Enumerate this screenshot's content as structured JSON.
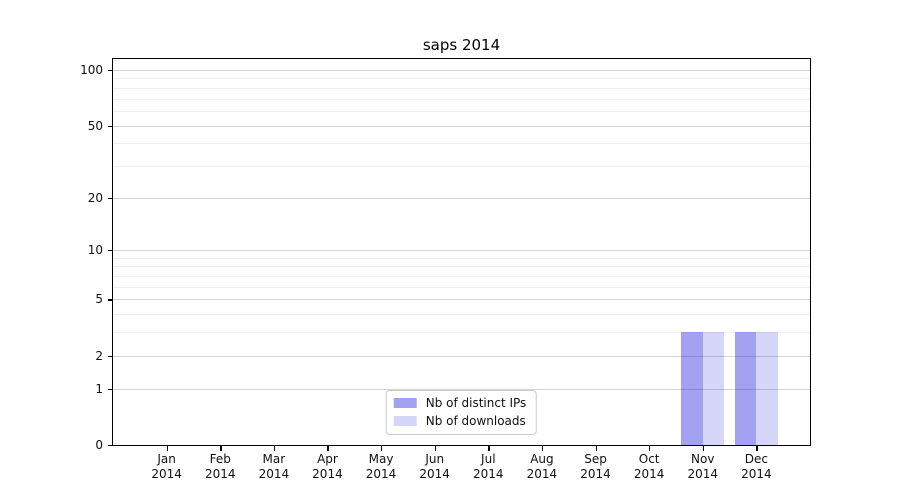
{
  "title": "saps 2014",
  "chart_data": {
    "type": "bar",
    "title": "saps 2014",
    "categories": [
      "Jan",
      "Feb",
      "Mar",
      "Apr",
      "May",
      "Jun",
      "Jul",
      "Aug",
      "Sep",
      "Oct",
      "Nov",
      "Dec"
    ],
    "category_year": "2014",
    "series": [
      {
        "name": "Nb of distinct IPs",
        "color": "rgba(10,10,215,0.38)",
        "values": [
          0,
          0,
          0,
          0,
          0,
          0,
          0,
          0,
          0,
          0,
          3,
          3
        ]
      },
      {
        "name": "Nb of downloads",
        "color": "rgba(10,10,215,0.17)",
        "values": [
          0,
          0,
          0,
          0,
          0,
          0,
          0,
          0,
          0,
          0,
          3,
          3
        ]
      }
    ],
    "xlabel": "",
    "ylabel": "",
    "yscale": "log1p",
    "yticks": [
      0,
      1,
      2,
      5,
      10,
      20,
      50,
      100
    ],
    "yticks_minor": [
      3,
      4,
      6,
      7,
      8,
      9,
      30,
      40,
      60,
      70,
      80,
      90
    ],
    "ylim": [
      0,
      115
    ],
    "grid": "horizontal",
    "legend_position": "lower center"
  },
  "colors": {
    "grid_major": "#d4d4d4",
    "grid_minor": "#efefef",
    "spine": "#000000",
    "background": "#ffffff"
  }
}
